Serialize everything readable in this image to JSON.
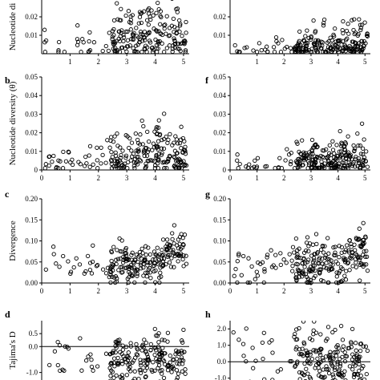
{
  "chart_data": [
    {
      "id": "a",
      "panel_label": "",
      "type": "scatter",
      "ylabel": "Nucleotide di",
      "ylim": [
        0,
        0.03
      ],
      "yticks": [
        0.01,
        0.02
      ],
      "ytick_labels": [
        "0.01",
        "0.02"
      ],
      "xlim": [
        0,
        5.2
      ],
      "xticks": [
        1,
        2,
        3,
        4,
        5
      ],
      "xtick_labels": [
        "1",
        "2",
        "3",
        "4",
        "5"
      ],
      "seed": 11,
      "n": 220,
      "yscale": 0.0105,
      "zero_line": false,
      "clip_top": true
    },
    {
      "id": "e",
      "panel_label": "",
      "type": "scatter",
      "ylabel": "",
      "ylim": [
        0,
        0.03
      ],
      "yticks": [
        0.01,
        0.02
      ],
      "ytick_labels": [
        "0.01",
        "0.02"
      ],
      "xlim": [
        0,
        5.2
      ],
      "xticks": [
        1,
        2,
        3,
        4,
        5
      ],
      "xtick_labels": [
        "1",
        "2",
        "3",
        "4",
        "5"
      ],
      "seed": 23,
      "n": 220,
      "yscale": 0.0048,
      "zero_line": false,
      "clip_top": true
    },
    {
      "id": "b",
      "panel_label": "b",
      "type": "scatter",
      "ylabel": "Nucleotide diversity (θ)",
      "ylim": [
        0,
        0.05
      ],
      "yticks": [
        0,
        0.01,
        0.02,
        0.03,
        0.04,
        0.05
      ],
      "ytick_labels": [
        "0",
        "0.01",
        "0.02",
        "0.03",
        "0.04",
        "0.05"
      ],
      "xlim": [
        0,
        5.2
      ],
      "xticks": [
        0,
        1,
        2,
        3,
        4,
        5
      ],
      "xtick_labels": [
        "0",
        "1",
        "2",
        "3",
        "4",
        "5"
      ],
      "seed": 37,
      "n": 230,
      "yscale": 0.0085,
      "zero_line": false,
      "clip_top": false
    },
    {
      "id": "f",
      "panel_label": "f",
      "type": "scatter",
      "ylabel": "",
      "ylim": [
        0,
        0.05
      ],
      "yticks": [
        0,
        0.01,
        0.02,
        0.03,
        0.04,
        0.05
      ],
      "ytick_labels": [
        "0",
        "0.01",
        "0.02",
        "0.03",
        "0.04",
        "0.05"
      ],
      "xlim": [
        0,
        5.2
      ],
      "xticks": [
        0,
        1,
        2,
        3,
        4,
        5
      ],
      "xtick_labels": [
        "0",
        "1",
        "2",
        "3",
        "4",
        "5"
      ],
      "seed": 41,
      "n": 240,
      "yscale": 0.0055,
      "zero_line": false,
      "clip_top": false
    },
    {
      "id": "c",
      "panel_label": "c",
      "type": "scatter",
      "ylabel": "Divergence",
      "ylim": [
        0,
        0.2
      ],
      "yticks": [
        0,
        0.05,
        0.1,
        0.15,
        0.2
      ],
      "ytick_labels": [
        "0.00",
        "0.05",
        "0.10",
        "0.15",
        "0.20"
      ],
      "xlim": [
        0,
        5.2
      ],
      "xticks": [
        0,
        1,
        2,
        3,
        4,
        5
      ],
      "xtick_labels": [
        "0",
        "1",
        "2",
        "3",
        "4",
        "5"
      ],
      "seed": 53,
      "n": 230,
      "yscale": 0.06,
      "zero_line": false,
      "clip_top": false
    },
    {
      "id": "g",
      "panel_label": "g",
      "type": "scatter",
      "ylabel": "",
      "ylim": [
        0,
        0.2
      ],
      "yticks": [
        0,
        0.05,
        0.1,
        0.15,
        0.2
      ],
      "ytick_labels": [
        "0.00",
        "0.05",
        "0.10",
        "0.15",
        "0.20"
      ],
      "xlim": [
        0,
        5.2
      ],
      "xticks": [
        0,
        1,
        2,
        3,
        4,
        5
      ],
      "xtick_labels": [
        "0",
        "1",
        "2",
        "3",
        "4",
        "5"
      ],
      "seed": 67,
      "n": 240,
      "yscale": 0.065,
      "zero_line": false,
      "clip_top": false
    },
    {
      "id": "d",
      "panel_label": "d",
      "type": "scatter",
      "ylabel": "Tajima's D",
      "ylim": [
        -1.6,
        1.0
      ],
      "yticks": [
        -1.0,
        0.0,
        0.5
      ],
      "ytick_labels": [
        "-1.0",
        "0.0",
        "0.5"
      ],
      "xlim": [
        0,
        5.2
      ],
      "xticks": [],
      "xtick_labels": [],
      "seed": 71,
      "n": 220,
      "yscale": -0.45,
      "zero_line": true,
      "clip_top": false
    },
    {
      "id": "h",
      "panel_label": "h",
      "type": "scatter",
      "ylabel": "",
      "ylim": [
        -1.6,
        2.5
      ],
      "yticks": [
        -1.0,
        0.0,
        1.0,
        2.0
      ],
      "ytick_labels": [
        "-1.0",
        "0.0",
        "1.0",
        "2.0"
      ],
      "xlim": [
        0,
        5.2
      ],
      "xticks": [],
      "xtick_labels": [],
      "seed": 89,
      "n": 230,
      "yscale": 0.25,
      "zero_line": true,
      "clip_top": false
    }
  ]
}
